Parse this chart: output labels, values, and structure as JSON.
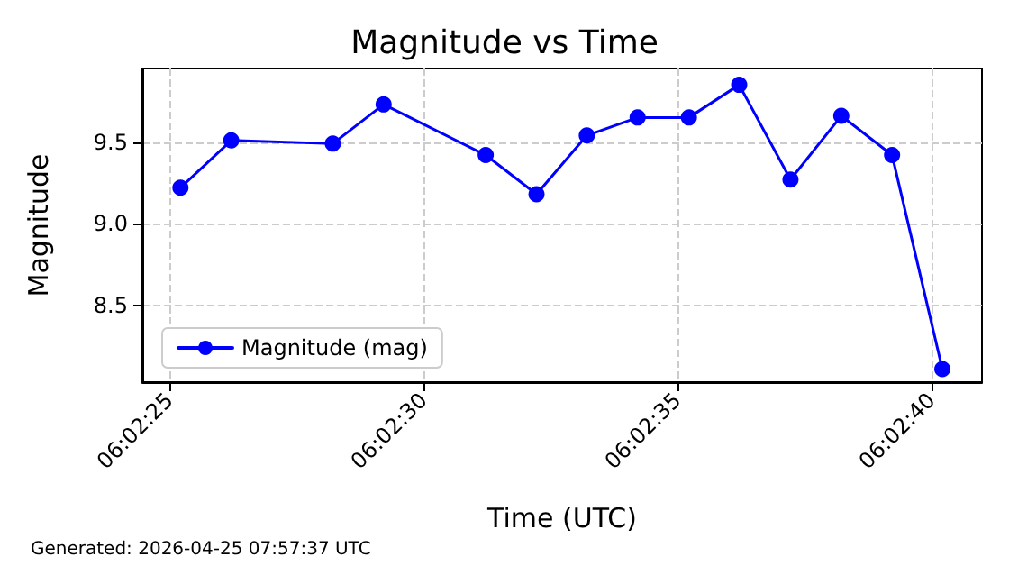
{
  "chart_data": {
    "type": "line",
    "title": "Magnitude vs Time",
    "xlabel": "Time (UTC)",
    "ylabel": "Magnitude",
    "annotations": [
      "Generated: 2026-04-25 07:57:37 UTC"
    ],
    "x": [
      6.0403389,
      6.0406166,
      6.0411722,
      6.04145,
      6.0420083,
      6.0422861,
      6.0425611,
      6.0428389,
      6.0431194,
      6.0433944,
      6.043675,
      6.0439527,
      6.0442305,
      6.0445055
    ],
    "series": [
      {
        "name": "Magnitude (mag)",
        "color": "#0000ff",
        "values": [
          9.22,
          9.51,
          9.49,
          9.73,
          9.42,
          9.18,
          9.54,
          9.65,
          9.65,
          9.85,
          9.27,
          9.66,
          9.42,
          8.11
        ]
      }
    ],
    "xlim": [
      6.0401305,
      6.0447222
    ],
    "xticks": [
      {
        "value": 6.0402778,
        "label": "06:02:25"
      },
      {
        "value": 6.0416667,
        "label": "06:02:30"
      },
      {
        "value": 6.0430556,
        "label": "06:02:35"
      },
      {
        "value": 6.0444444,
        "label": "06:02:40"
      }
    ],
    "ylim": [
      8.03,
      9.95
    ],
    "yticks": [
      {
        "value": 8.5,
        "label": "8.5"
      },
      {
        "value": 9.0,
        "label": "9.0"
      },
      {
        "value": 9.5,
        "label": "9.5"
      }
    ],
    "grid": true,
    "legend": "lower left",
    "marker": "circle",
    "line_style": "solid"
  }
}
